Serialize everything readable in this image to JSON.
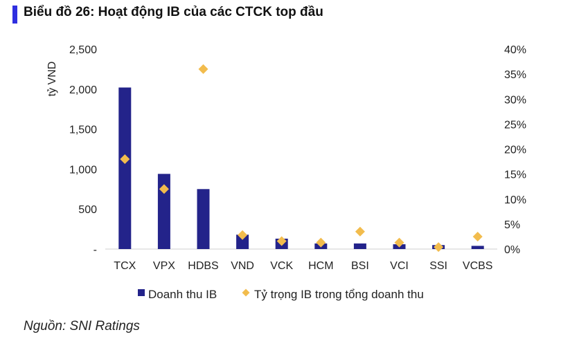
{
  "title": "Biểu đồ 26: Hoạt động IB của các CTCK top đầu",
  "source": "Nguồn: SNI Ratings",
  "colors": {
    "bar": "#23238a",
    "marker": "#f2bc4d",
    "accent": "#2f2fe0"
  },
  "chart_data": {
    "type": "bar",
    "categories": [
      "TCX",
      "VPX",
      "HDBS",
      "VND",
      "VCK",
      "HCM",
      "BSI",
      "VCI",
      "SSI",
      "VCBS"
    ],
    "ylabel": "tỷ VND",
    "ylim": [
      0,
      2500
    ],
    "y_ticks": [
      "-",
      "500",
      "1,000",
      "1,500",
      "2,000",
      "2,500"
    ],
    "y2lim": [
      0,
      40
    ],
    "y2_ticks": [
      "0%",
      "5%",
      "10%",
      "15%",
      "20%",
      "25%",
      "30%",
      "35%",
      "40%"
    ],
    "grid": false,
    "legend": "bottom",
    "series": [
      {
        "name": "Doanh thu IB",
        "kind": "bar",
        "axis": "left",
        "values": [
          2020,
          940,
          750,
          180,
          130,
          70,
          70,
          60,
          50,
          40
        ]
      },
      {
        "name": "Tỷ trọng IB trong tổng doanh thu",
        "kind": "marker",
        "axis": "right",
        "values": [
          18.0,
          12.0,
          36.0,
          2.8,
          1.6,
          1.3,
          3.5,
          1.3,
          0.4,
          2.5
        ]
      }
    ]
  }
}
